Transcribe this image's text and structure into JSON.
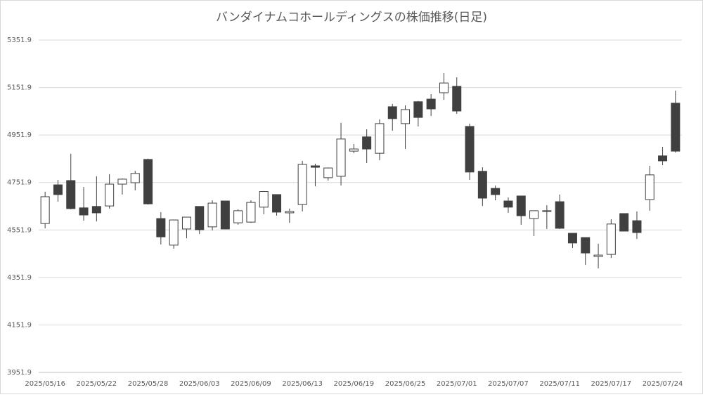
{
  "chart_data": {
    "type": "candlestick",
    "title": "バンダイナムコホールディングスの株価推移(日足)",
    "categories": [
      "2025/05/16",
      null,
      null,
      null,
      "2025/05/22",
      null,
      null,
      null,
      "2025/05/28",
      null,
      null,
      null,
      "2025/06/03",
      null,
      null,
      null,
      "2025/06/09",
      null,
      null,
      null,
      "2025/06/13",
      null,
      null,
      null,
      "2025/06/19",
      null,
      null,
      null,
      "2025/06/25",
      null,
      null,
      null,
      "2025/07/01",
      null,
      null,
      null,
      "2025/07/07",
      null,
      null,
      null,
      "2025/07/11",
      null,
      null,
      null,
      "2025/07/17",
      null,
      null,
      null,
      "2025/07/24",
      null
    ],
    "open": [
      4579,
      4742,
      4760,
      4645,
      4651,
      4653,
      4745,
      4751,
      4849,
      4600,
      4488,
      4556,
      4651,
      4565,
      4674,
      4582,
      4585,
      4648,
      4701,
      4624,
      4659,
      4822,
      4772,
      4778,
      4884,
      4944,
      4875,
      5071,
      5000,
      5092,
      5103,
      5130,
      5157,
      4988,
      4799,
      4727,
      4674,
      4695,
      4600,
      4630,
      4671,
      4538,
      4520,
      4440,
      4449,
      4621,
      4591,
      4680,
      4864,
      5086
    ],
    "high": [
      4713,
      4763,
      4873,
      4733,
      4778,
      4787,
      4769,
      4801,
      4852,
      4627,
      4596,
      4606,
      4652,
      4677,
      4675,
      4639,
      4677,
      4716,
      4702,
      4642,
      4843,
      4831,
      4815,
      5003,
      4914,
      4976,
      5018,
      5083,
      5077,
      5095,
      5124,
      5213,
      5195,
      5000,
      4816,
      4739,
      4689,
      4696,
      4634,
      4656,
      4701,
      4539,
      4521,
      4494,
      4597,
      4622,
      4630,
      4822,
      4902,
      5139
    ],
    "low": [
      4559,
      4671,
      4639,
      4591,
      4588,
      4642,
      4701,
      4719,
      4659,
      4491,
      4473,
      4517,
      4535,
      4550,
      4555,
      4574,
      4582,
      4618,
      4612,
      4582,
      4630,
      4736,
      4760,
      4739,
      4875,
      4834,
      4846,
      4970,
      4893,
      4988,
      5032,
      5100,
      5041,
      4763,
      4653,
      4677,
      4624,
      4574,
      4526,
      4556,
      4556,
      4476,
      4405,
      4390,
      4434,
      4546,
      4514,
      4633,
      4825,
      4878
    ],
    "close": [
      4692,
      4701,
      4642,
      4615,
      4624,
      4745,
      4766,
      4790,
      4662,
      4523,
      4594,
      4606,
      4553,
      4665,
      4556,
      4633,
      4668,
      4714,
      4627,
      4630,
      4828,
      4816,
      4813,
      4935,
      4893,
      4893,
      5000,
      5021,
      5059,
      5026,
      5062,
      5171,
      5053,
      4796,
      4686,
      4701,
      4648,
      4612,
      4633,
      4633,
      4559,
      4497,
      4455,
      4446,
      4577,
      4547,
      4541,
      4784,
      4843,
      4884
    ],
    "up_color": "#ffffff",
    "down_color": "#404040",
    "ylim": [
      3951.9,
      5351.9
    ],
    "yticks": [
      3951.9,
      4151.9,
      4351.9,
      4551.9,
      4751.9,
      4951.9,
      5151.9,
      5351.9
    ],
    "grid": true
  }
}
